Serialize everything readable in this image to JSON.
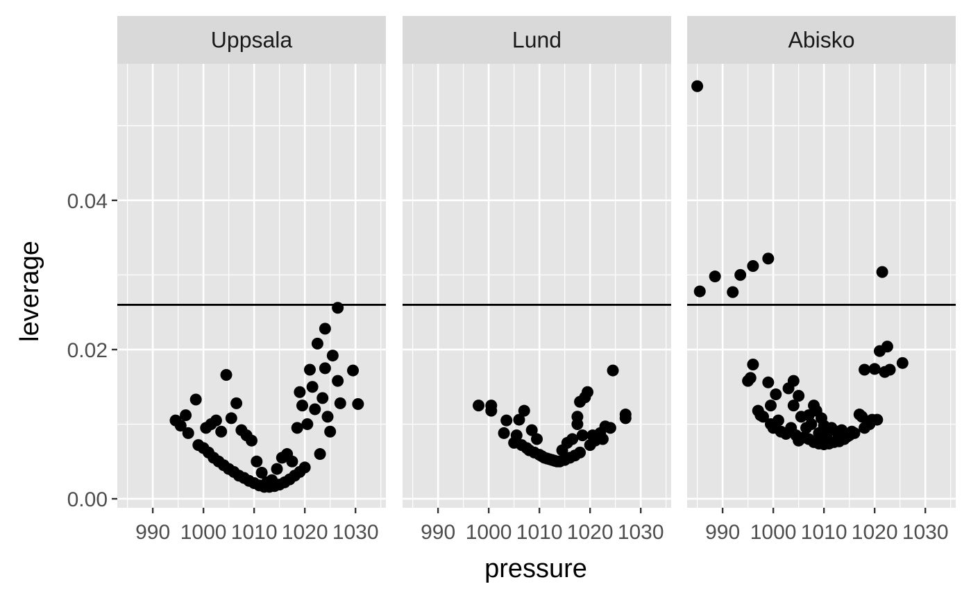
{
  "chart_data": {
    "type": "scatter",
    "xlabel": "pressure",
    "ylabel": "leverage",
    "xlim": [
      983,
      1036
    ],
    "ylim": [
      -0.0012,
      0.0583
    ],
    "x_ticks": [
      990,
      1000,
      1010,
      1020,
      1030
    ],
    "y_ticks": [
      0.0,
      0.02,
      0.04
    ],
    "y_tick_labels": [
      "0.00",
      "0.02",
      "0.04"
    ],
    "hline": 0.026,
    "grid": true,
    "point_color": "#000000",
    "panel_background": "#e5e5e5",
    "strip_background": "#d9d9d9",
    "grid_color": "#ffffff",
    "panels": [
      {
        "name": "Uppsala",
        "points": [
          {
            "x": 994.5,
            "y": 0.0105
          },
          {
            "x": 995.5,
            "y": 0.0098
          },
          {
            "x": 996.5,
            "y": 0.0112
          },
          {
            "x": 997.0,
            "y": 0.0088
          },
          {
            "x": 998.5,
            "y": 0.0133
          },
          {
            "x": 999.0,
            "y": 0.0072
          },
          {
            "x": 1000.0,
            "y": 0.0068
          },
          {
            "x": 1000.5,
            "y": 0.0095
          },
          {
            "x": 1001.0,
            "y": 0.0062
          },
          {
            "x": 1001.5,
            "y": 0.01
          },
          {
            "x": 1002.0,
            "y": 0.0055
          },
          {
            "x": 1002.5,
            "y": 0.0105
          },
          {
            "x": 1003.0,
            "y": 0.005
          },
          {
            "x": 1003.5,
            "y": 0.009
          },
          {
            "x": 1004.0,
            "y": 0.0045
          },
          {
            "x": 1004.5,
            "y": 0.0166
          },
          {
            "x": 1005.0,
            "y": 0.004
          },
          {
            "x": 1005.5,
            "y": 0.0108
          },
          {
            "x": 1006.0,
            "y": 0.0036
          },
          {
            "x": 1006.5,
            "y": 0.0128
          },
          {
            "x": 1007.0,
            "y": 0.0031
          },
          {
            "x": 1007.5,
            "y": 0.0092
          },
          {
            "x": 1008.0,
            "y": 0.0028
          },
          {
            "x": 1008.5,
            "y": 0.0085
          },
          {
            "x": 1009.0,
            "y": 0.0024
          },
          {
            "x": 1009.5,
            "y": 0.0078
          },
          {
            "x": 1010.0,
            "y": 0.0021
          },
          {
            "x": 1010.5,
            "y": 0.005
          },
          {
            "x": 1011.0,
            "y": 0.0018
          },
          {
            "x": 1011.5,
            "y": 0.0035
          },
          {
            "x": 1012.0,
            "y": 0.0016
          },
          {
            "x": 1012.5,
            "y": 0.0022
          },
          {
            "x": 1013.0,
            "y": 0.0016
          },
          {
            "x": 1013.5,
            "y": 0.0025
          },
          {
            "x": 1014.0,
            "y": 0.0017
          },
          {
            "x": 1014.5,
            "y": 0.004
          },
          {
            "x": 1015.0,
            "y": 0.0019
          },
          {
            "x": 1015.5,
            "y": 0.0055
          },
          {
            "x": 1016.0,
            "y": 0.0022
          },
          {
            "x": 1016.5,
            "y": 0.006
          },
          {
            "x": 1017.0,
            "y": 0.0026
          },
          {
            "x": 1017.5,
            "y": 0.005
          },
          {
            "x": 1018.0,
            "y": 0.0031
          },
          {
            "x": 1018.5,
            "y": 0.0095
          },
          {
            "x": 1019.0,
            "y": 0.0036
          },
          {
            "x": 1019.0,
            "y": 0.0143
          },
          {
            "x": 1019.5,
            "y": 0.0125
          },
          {
            "x": 1020.0,
            "y": 0.0042
          },
          {
            "x": 1020.5,
            "y": 0.01
          },
          {
            "x": 1021.0,
            "y": 0.0173
          },
          {
            "x": 1021.5,
            "y": 0.015
          },
          {
            "x": 1022.0,
            "y": 0.012
          },
          {
            "x": 1022.5,
            "y": 0.0208
          },
          {
            "x": 1023.0,
            "y": 0.006
          },
          {
            "x": 1023.5,
            "y": 0.0135
          },
          {
            "x": 1024.0,
            "y": 0.0228
          },
          {
            "x": 1024.0,
            "y": 0.0175
          },
          {
            "x": 1024.5,
            "y": 0.011
          },
          {
            "x": 1025.0,
            "y": 0.009
          },
          {
            "x": 1025.5,
            "y": 0.0192
          },
          {
            "x": 1026.5,
            "y": 0.0256
          },
          {
            "x": 1026.5,
            "y": 0.0158
          },
          {
            "x": 1027.0,
            "y": 0.0128
          },
          {
            "x": 1029.5,
            "y": 0.0172
          },
          {
            "x": 1030.5,
            "y": 0.0127
          }
        ]
      },
      {
        "name": "Lund",
        "points": [
          {
            "x": 998.0,
            "y": 0.0125
          },
          {
            "x": 1000.5,
            "y": 0.0125
          },
          {
            "x": 1000.5,
            "y": 0.0118
          },
          {
            "x": 1003.0,
            "y": 0.0088
          },
          {
            "x": 1003.5,
            "y": 0.0105
          },
          {
            "x": 1005.0,
            "y": 0.0075
          },
          {
            "x": 1005.5,
            "y": 0.0085
          },
          {
            "x": 1006.0,
            "y": 0.0106
          },
          {
            "x": 1006.5,
            "y": 0.0072
          },
          {
            "x": 1007.0,
            "y": 0.0118
          },
          {
            "x": 1007.5,
            "y": 0.0068
          },
          {
            "x": 1008.0,
            "y": 0.0065
          },
          {
            "x": 1008.5,
            "y": 0.0092
          },
          {
            "x": 1009.0,
            "y": 0.0062
          },
          {
            "x": 1009.5,
            "y": 0.008
          },
          {
            "x": 1010.0,
            "y": 0.0059
          },
          {
            "x": 1010.5,
            "y": 0.0057
          },
          {
            "x": 1011.0,
            "y": 0.0055
          },
          {
            "x": 1011.5,
            "y": 0.0054
          },
          {
            "x": 1012.0,
            "y": 0.0053
          },
          {
            "x": 1012.5,
            "y": 0.0052
          },
          {
            "x": 1013.0,
            "y": 0.0051
          },
          {
            "x": 1013.5,
            "y": 0.005
          },
          {
            "x": 1014.0,
            "y": 0.005
          },
          {
            "x": 1014.5,
            "y": 0.0065
          },
          {
            "x": 1015.0,
            "y": 0.0052
          },
          {
            "x": 1015.5,
            "y": 0.0075
          },
          {
            "x": 1016.0,
            "y": 0.0055
          },
          {
            "x": 1016.5,
            "y": 0.008
          },
          {
            "x": 1017.0,
            "y": 0.0058
          },
          {
            "x": 1017.5,
            "y": 0.01
          },
          {
            "x": 1017.5,
            "y": 0.011
          },
          {
            "x": 1018.0,
            "y": 0.0062
          },
          {
            "x": 1018.0,
            "y": 0.013
          },
          {
            "x": 1018.5,
            "y": 0.0085
          },
          {
            "x": 1019.0,
            "y": 0.0136
          },
          {
            "x": 1019.5,
            "y": 0.0143
          },
          {
            "x": 1020.0,
            "y": 0.0072
          },
          {
            "x": 1020.5,
            "y": 0.0085
          },
          {
            "x": 1021.0,
            "y": 0.0078
          },
          {
            "x": 1022.0,
            "y": 0.0088
          },
          {
            "x": 1022.5,
            "y": 0.008
          },
          {
            "x": 1023.0,
            "y": 0.0097
          },
          {
            "x": 1024.0,
            "y": 0.0095
          },
          {
            "x": 1024.5,
            "y": 0.0172
          },
          {
            "x": 1027.0,
            "y": 0.0108
          },
          {
            "x": 1027.0,
            "y": 0.0113
          }
        ]
      },
      {
        "name": "Abisko",
        "points": [
          {
            "x": 985.0,
            "y": 0.0553
          },
          {
            "x": 985.5,
            "y": 0.0278
          },
          {
            "x": 988.5,
            "y": 0.0298
          },
          {
            "x": 992.0,
            "y": 0.0277
          },
          {
            "x": 993.5,
            "y": 0.03
          },
          {
            "x": 996.0,
            "y": 0.0312
          },
          {
            "x": 999.0,
            "y": 0.0322
          },
          {
            "x": 995.0,
            "y": 0.0158
          },
          {
            "x": 995.5,
            "y": 0.0162
          },
          {
            "x": 996.0,
            "y": 0.018
          },
          {
            "x": 997.0,
            "y": 0.0118
          },
          {
            "x": 997.5,
            "y": 0.0112
          },
          {
            "x": 998.0,
            "y": 0.011
          },
          {
            "x": 999.0,
            "y": 0.0156
          },
          {
            "x": 999.5,
            "y": 0.01
          },
          {
            "x": 999.5,
            "y": 0.0125
          },
          {
            "x": 1000.0,
            "y": 0.0095
          },
          {
            "x": 1000.5,
            "y": 0.014
          },
          {
            "x": 1001.0,
            "y": 0.0105
          },
          {
            "x": 1001.5,
            "y": 0.009
          },
          {
            "x": 1002.5,
            "y": 0.0087
          },
          {
            "x": 1003.0,
            "y": 0.0148
          },
          {
            "x": 1003.5,
            "y": 0.0095
          },
          {
            "x": 1004.0,
            "y": 0.0158
          },
          {
            "x": 1004.0,
            "y": 0.0125
          },
          {
            "x": 1004.5,
            "y": 0.0085
          },
          {
            "x": 1005.0,
            "y": 0.0138
          },
          {
            "x": 1005.0,
            "y": 0.0078
          },
          {
            "x": 1005.5,
            "y": 0.011
          },
          {
            "x": 1006.0,
            "y": 0.0082
          },
          {
            "x": 1006.5,
            "y": 0.0095
          },
          {
            "x": 1007.0,
            "y": 0.008
          },
          {
            "x": 1007.0,
            "y": 0.0112
          },
          {
            "x": 1007.5,
            "y": 0.01
          },
          {
            "x": 1008.0,
            "y": 0.0076
          },
          {
            "x": 1008.0,
            "y": 0.0125
          },
          {
            "x": 1008.5,
            "y": 0.0118
          },
          {
            "x": 1009.0,
            "y": 0.0074
          },
          {
            "x": 1009.0,
            "y": 0.0088
          },
          {
            "x": 1009.5,
            "y": 0.0108
          },
          {
            "x": 1010.0,
            "y": 0.0073
          },
          {
            "x": 1010.0,
            "y": 0.0098
          },
          {
            "x": 1010.5,
            "y": 0.0085
          },
          {
            "x": 1011.0,
            "y": 0.0074
          },
          {
            "x": 1011.5,
            "y": 0.0095
          },
          {
            "x": 1012.0,
            "y": 0.0076
          },
          {
            "x": 1012.5,
            "y": 0.009
          },
          {
            "x": 1013.0,
            "y": 0.0077
          },
          {
            "x": 1013.5,
            "y": 0.0092
          },
          {
            "x": 1014.0,
            "y": 0.008
          },
          {
            "x": 1014.5,
            "y": 0.0083
          },
          {
            "x": 1015.0,
            "y": 0.0085
          },
          {
            "x": 1015.5,
            "y": 0.009
          },
          {
            "x": 1016.0,
            "y": 0.0088
          },
          {
            "x": 1017.0,
            "y": 0.0113
          },
          {
            "x": 1017.5,
            "y": 0.011
          },
          {
            "x": 1018.0,
            "y": 0.0095
          },
          {
            "x": 1018.0,
            "y": 0.0173
          },
          {
            "x": 1019.0,
            "y": 0.01
          },
          {
            "x": 1019.5,
            "y": 0.0106
          },
          {
            "x": 1020.0,
            "y": 0.0174
          },
          {
            "x": 1020.5,
            "y": 0.0106
          },
          {
            "x": 1021.0,
            "y": 0.0198
          },
          {
            "x": 1021.5,
            "y": 0.0304
          },
          {
            "x": 1022.0,
            "y": 0.017
          },
          {
            "x": 1022.5,
            "y": 0.0204
          },
          {
            "x": 1023.0,
            "y": 0.0173
          },
          {
            "x": 1025.5,
            "y": 0.0182
          }
        ]
      }
    ]
  }
}
